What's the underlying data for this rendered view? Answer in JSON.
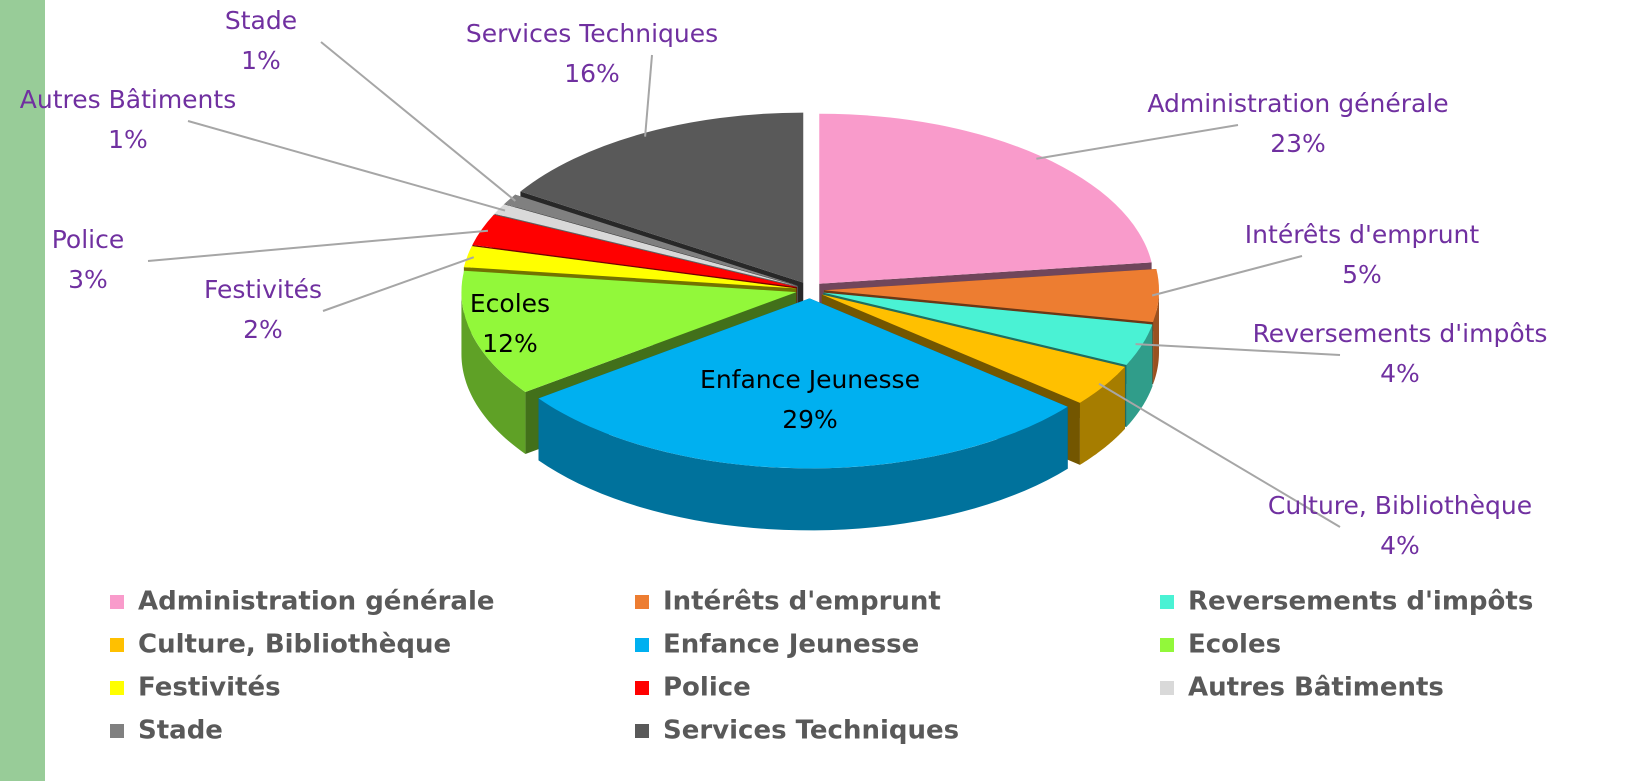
{
  "chart_data": {
    "type": "pie",
    "categories": [
      "Administration générale",
      "Intérêts d'emprunt",
      "Reversements d'impôts",
      "Culture, Bibliothèque",
      "Enfance Jeunesse",
      "Ecoles",
      "Festivités",
      "Police",
      "Autres Bâtiments",
      "Stade",
      "Services Techniques"
    ],
    "values": [
      23,
      5,
      4,
      4,
      29,
      12,
      2,
      3,
      1,
      1,
      16
    ],
    "value_labels": [
      "23%",
      "5%",
      "4%",
      "4%",
      "29%",
      "12%",
      "2%",
      "3%",
      "1%",
      "1%",
      "16%"
    ],
    "colors": [
      "#f99bcb",
      "#ed7d31",
      "#4af2d4",
      "#ffc000",
      "#00b0f0",
      "#92f83a",
      "#ffff00",
      "#ff0000",
      "#d9d9d9",
      "#808080",
      "#595959"
    ],
    "legend": "bottom"
  }
}
